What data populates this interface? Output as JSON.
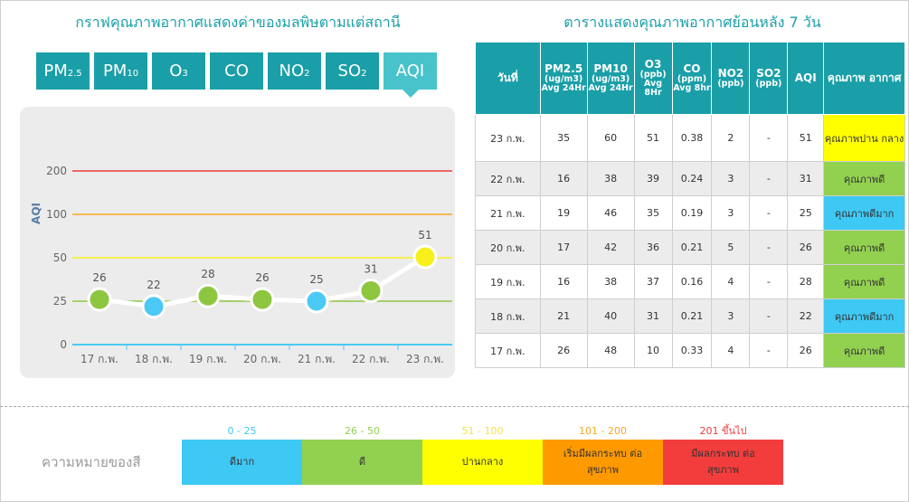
{
  "left_title": "กราฟคุณภาพอากาศแสดงค่าของมลพิษตามแต่สถานี",
  "right_title": "ตารางแสดงคุณภาพอากาศย้อนหลัง 7 วัน",
  "tabs": [
    {
      "base": "PM",
      "sub": "2.5",
      "active": false
    },
    {
      "base": "PM",
      "sub": "10",
      "active": false
    },
    {
      "base": "O",
      "sub": "3",
      "active": false
    },
    {
      "base": "CO",
      "sub": "",
      "active": false
    },
    {
      "base": "NO",
      "sub": "2",
      "active": false
    },
    {
      "base": "SO",
      "sub": "2",
      "active": false
    },
    {
      "base": "AQI",
      "sub": "",
      "active": true
    }
  ],
  "chart_data": {
    "type": "line",
    "ylabel": "AQI",
    "y_ticks": [
      0,
      25,
      50,
      100,
      200
    ],
    "threshold_colors": {
      "0": "#4bc9f5",
      "25": "#8dc63f",
      "50": "#f7f01c",
      "100": "#f7a823",
      "200": "#ef3b3b"
    },
    "categories": [
      "17 ก.พ.",
      "18 ก.พ.",
      "19 ก.พ.",
      "20 ก.พ.",
      "21 ก.พ.",
      "22 ก.พ.",
      "23 ก.พ."
    ],
    "values": [
      26,
      22,
      28,
      26,
      25,
      31,
      51
    ],
    "point_colors": [
      "#8dc63f",
      "#4bc9f5",
      "#8dc63f",
      "#8dc63f",
      "#4bc9f5",
      "#8dc63f",
      "#f7f01c"
    ]
  },
  "table": {
    "headers": [
      {
        "main": "วันที่",
        "unit": ""
      },
      {
        "main": "PM2.5",
        "unit": "(ug/m3) Avg 24Hr"
      },
      {
        "main": "PM10",
        "unit": "(ug/m3) Avg 24Hr"
      },
      {
        "main": "O3",
        "unit": "(ppb) Avg 8Hr"
      },
      {
        "main": "CO",
        "unit": "(ppm) Avg 8hr"
      },
      {
        "main": "NO2",
        "unit": "(ppb)"
      },
      {
        "main": "SO2",
        "unit": "(ppb)"
      },
      {
        "main": "AQI",
        "unit": ""
      },
      {
        "main": "คุณภาพ อากาศ",
        "unit": ""
      }
    ],
    "rows": [
      {
        "date": "23 ก.พ.",
        "pm25": "35",
        "pm10": "60",
        "o3": "51",
        "co": "0.38",
        "no2": "2",
        "so2": "-",
        "aqi": "51",
        "quality": "คุณภาพปาน กลาง",
        "color": "#ffff00"
      },
      {
        "date": "22 ก.พ.",
        "pm25": "16",
        "pm10": "38",
        "o3": "39",
        "co": "0.24",
        "no2": "3",
        "so2": "-",
        "aqi": "31",
        "quality": "คุณภาพดี",
        "color": "#92d050"
      },
      {
        "date": "21 ก.พ.",
        "pm25": "19",
        "pm10": "46",
        "o3": "35",
        "co": "0.19",
        "no2": "3",
        "so2": "-",
        "aqi": "25",
        "quality": "คุณภาพดีมาก",
        "color": "#3ec8f4"
      },
      {
        "date": "20 ก.พ.",
        "pm25": "17",
        "pm10": "42",
        "o3": "36",
        "co": "0.21",
        "no2": "5",
        "so2": "-",
        "aqi": "26",
        "quality": "คุณภาพดี",
        "color": "#92d050"
      },
      {
        "date": "19 ก.พ.",
        "pm25": "16",
        "pm10": "38",
        "o3": "37",
        "co": "0.16",
        "no2": "4",
        "so2": "-",
        "aqi": "28",
        "quality": "คุณภาพดี",
        "color": "#92d050"
      },
      {
        "date": "18 ก.พ.",
        "pm25": "21",
        "pm10": "40",
        "o3": "31",
        "co": "0.21",
        "no2": "3",
        "so2": "-",
        "aqi": "22",
        "quality": "คุณภาพดีมาก",
        "color": "#3ec8f4"
      },
      {
        "date": "17 ก.พ.",
        "pm25": "26",
        "pm10": "48",
        "o3": "10",
        "co": "0.33",
        "no2": "4",
        "so2": "-",
        "aqi": "26",
        "quality": "คุณภาพดี",
        "color": "#92d050"
      }
    ]
  },
  "legend": {
    "title": "ความหมายของสี",
    "items": [
      {
        "range": "0 - 25",
        "label": "ดีมาก",
        "color": "#3ec8f4",
        "range_color": "#3ec8f4"
      },
      {
        "range": "26 - 50",
        "label": "ดี",
        "color": "#92d050",
        "range_color": "#92d050"
      },
      {
        "range": "51 - 100",
        "label": "ปานกลาง",
        "color": "#ffff00",
        "range_color": "#f2e24a"
      },
      {
        "range": "101 - 200",
        "label": "เริ่มมีผลกระทบ ต่อสุขภาพ",
        "color": "#ff9900",
        "range_color": "#f7a823"
      },
      {
        "range": "201 ขึ้นไป",
        "label": "มีผลกระทบ ต่อสุขภาพ",
        "color": "#f33d3d",
        "range_color": "#ef3b3b"
      }
    ]
  }
}
